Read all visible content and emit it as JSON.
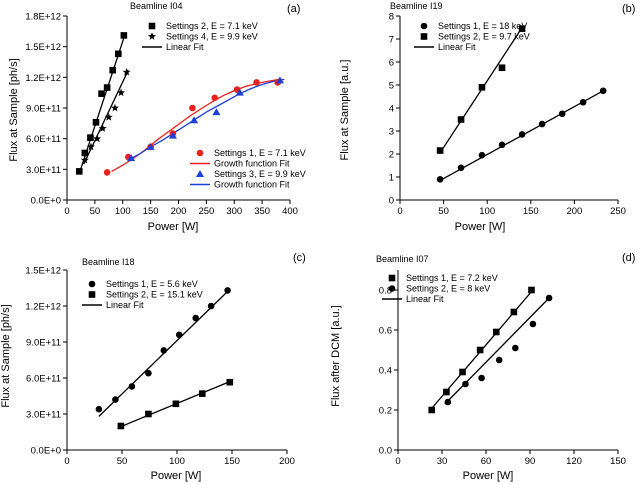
{
  "chart_data": [
    {
      "type": "scatter",
      "panel_label": "(a)",
      "title": "Beamline I04",
      "xlabel": "Power [W]",
      "ylabel": "Flux at Sample [ph/s]",
      "xlim": [
        0,
        400
      ],
      "ylim": [
        0,
        1800000000000.0
      ],
      "xticks": [
        "0",
        "50",
        "100",
        "150",
        "200",
        "250",
        "300",
        "350",
        "400"
      ],
      "yticks": [
        "0.0E+0",
        "3.0E+11",
        "6.0E+11",
        "9.0E+11",
        "1.2E+12",
        "1.5E+12",
        "1.8E+12"
      ],
      "xtick_values": [
        0,
        50,
        100,
        150,
        200,
        250,
        300,
        350,
        400
      ],
      "ytick_values": [
        0,
        300000000000.0,
        600000000000.0,
        900000000000.0,
        1200000000000.0,
        1500000000000.0,
        1800000000000.0
      ],
      "legends": [
        {
          "items": [
            {
              "label": "Settings 2, E = 7.1 keV",
              "marker": "square",
              "color": "#000000"
            },
            {
              "label": "Settings 4, E = 9.9 keV",
              "marker": "star",
              "color": "#000000"
            },
            {
              "label": "Linear Fit",
              "marker": "line",
              "color": "#000000"
            }
          ]
        },
        {
          "items": [
            {
              "label": "Settings 1, E = 7.1 keV",
              "marker": "circle",
              "color": "#e8231f"
            },
            {
              "label": "Growth function Fit",
              "marker": "line",
              "color": "#e8231f"
            },
            {
              "label": "Settings 3, E = 9.9 keV",
              "marker": "triangle",
              "color": "#1e3fd6"
            },
            {
              "label": "Growth function Fit",
              "marker": "line",
              "color": "#1e3fd6"
            }
          ]
        }
      ],
      "series": [
        {
          "name": "Settings 2, E = 7.1 keV",
          "marker": "square",
          "color": "#000000",
          "x": [
            22,
            32,
            42,
            52,
            62,
            72,
            82,
            92,
            102
          ],
          "y": [
            280000000000.0,
            460000000000.0,
            610000000000.0,
            760000000000.0,
            1040000000000.0,
            1100000000000.0,
            1270000000000.0,
            1430000000000.0,
            1610000000000.0
          ]
        },
        {
          "name": "Settings 4, E = 9.9 keV",
          "marker": "star",
          "color": "#000000",
          "x": [
            32,
            43,
            54,
            64,
            75,
            86,
            97,
            107
          ],
          "y": [
            390000000000.0,
            520000000000.0,
            600000000000.0,
            700000000000.0,
            810000000000.0,
            900000000000.0,
            1050000000000.0,
            1250000000000.0
          ]
        },
        {
          "name": "Linear Fit (Settings 2)",
          "type": "line",
          "color": "#000000",
          "x": [
            22,
            104
          ],
          "y": [
            260000000000.0,
            1620000000000.0
          ]
        },
        {
          "name": "Linear Fit (Settings 4)",
          "type": "line",
          "color": "#000000",
          "x": [
            30,
            110
          ],
          "y": [
            350000000000.0,
            1270000000000.0
          ]
        },
        {
          "name": "Settings 1, E = 7.1 keV",
          "marker": "circle",
          "color": "#e8231f",
          "x": [
            72,
            110,
            150,
            190,
            225,
            265,
            305,
            340,
            378
          ],
          "y": [
            270000000000.0,
            420000000000.0,
            520000000000.0,
            650000000000.0,
            900000000000.0,
            1000000000000.0,
            1080000000000.0,
            1150000000000.0,
            1150000000000.0
          ]
        },
        {
          "name": "Settings 3, E = 9.9 keV",
          "marker": "triangle",
          "color": "#1e3fd6",
          "x": [
            115,
            150,
            190,
            228,
            268,
            310,
            382
          ],
          "y": [
            410000000000.0,
            520000000000.0,
            630000000000.0,
            780000000000.0,
            860000000000.0,
            1050000000000.0,
            1170000000000.0
          ]
        },
        {
          "name": "Growth function Fit (red)",
          "type": "line",
          "color": "#e8231f",
          "x": [
            80,
            100,
            120,
            140,
            160,
            180,
            200,
            220,
            240,
            260,
            280,
            300,
            320,
            340,
            360,
            380
          ],
          "y": [
            280000000000.0,
            340000000000.0,
            410000000000.0,
            490000000000.0,
            580000000000.0,
            660000000000.0,
            740000000000.0,
            820000000000.0,
            890000000000.0,
            960000000000.0,
            1020000000000.0,
            1070000000000.0,
            1110000000000.0,
            1140000000000.0,
            1160000000000.0,
            1180000000000.0
          ]
        },
        {
          "name": "Growth function Fit (blue)",
          "type": "line",
          "color": "#1e3fd6",
          "x": [
            110,
            130,
            150,
            170,
            190,
            210,
            230,
            250,
            270,
            290,
            310,
            330,
            350,
            370,
            390
          ],
          "y": [
            390000000000.0,
            450000000000.0,
            520000000000.0,
            580000000000.0,
            650000000000.0,
            720000000000.0,
            790000000000.0,
            860000000000.0,
            920000000000.0,
            980000000000.0,
            1040000000000.0,
            1090000000000.0,
            1130000000000.0,
            1160000000000.0,
            1180000000000.0
          ]
        }
      ]
    },
    {
      "type": "scatter",
      "panel_label": "(b)",
      "title": "Beamline I19",
      "xlabel": "Power [W]",
      "ylabel": "Flux at Sample [a.u.]",
      "xlim": [
        0,
        250
      ],
      "ylim": [
        0,
        8
      ],
      "xticks": [
        "0",
        "50",
        "100",
        "150",
        "200",
        "250"
      ],
      "yticks": [
        "0",
        "1",
        "2",
        "3",
        "4",
        "5",
        "6",
        "7",
        "8"
      ],
      "xtick_values": [
        0,
        50,
        100,
        150,
        200,
        250
      ],
      "ytick_values": [
        0,
        1,
        2,
        3,
        4,
        5,
        6,
        7,
        8
      ],
      "legends": [
        {
          "items": [
            {
              "label": "Settings 1, E = 18 keV",
              "marker": "circle",
              "color": "#000000"
            },
            {
              "label": "Settings 2, E = 9.7 keV",
              "marker": "square",
              "color": "#000000"
            },
            {
              "label": "Linear Fit",
              "marker": "line",
              "color": "#000000"
            }
          ]
        }
      ],
      "series": [
        {
          "name": "Settings 1, E = 18 keV",
          "marker": "circle",
          "color": "#000000",
          "x": [
            46,
            70,
            94,
            117,
            140,
            163,
            186,
            210,
            233
          ],
          "y": [
            0.9,
            1.4,
            1.95,
            2.4,
            2.85,
            3.3,
            3.75,
            4.25,
            4.75
          ]
        },
        {
          "name": "Settings 2, E = 9.7 keV",
          "marker": "square",
          "color": "#000000",
          "x": [
            46,
            70,
            94,
            117,
            140
          ],
          "y": [
            2.15,
            3.5,
            4.9,
            5.75,
            7.45
          ]
        },
        {
          "name": "Linear Fit (Settings 1)",
          "type": "line",
          "color": "#000000",
          "x": [
            46,
            233
          ],
          "y": [
            0.85,
            4.75
          ]
        },
        {
          "name": "Linear Fit (Settings 2)",
          "type": "line",
          "color": "#000000",
          "x": [
            46,
            140
          ],
          "y": [
            2.05,
            7.5
          ]
        }
      ]
    },
    {
      "type": "scatter",
      "panel_label": "(c)",
      "title": "Beamline I18",
      "xlabel": "Power [W]",
      "ylabel": "Flux at Sample [ph/s]",
      "xlim": [
        0,
        200
      ],
      "ylim": [
        0,
        1500000000000.0
      ],
      "xticks": [
        "0",
        "50",
        "100",
        "150",
        "200"
      ],
      "yticks": [
        "0.0E+0",
        "3.0E+11",
        "6.0E+11",
        "9.0E+11",
        "1.2E+12",
        "1.5E+12"
      ],
      "xtick_values": [
        0,
        50,
        100,
        150,
        200
      ],
      "ytick_values": [
        0,
        300000000000.0,
        600000000000.0,
        900000000000.0,
        1200000000000.0,
        1500000000000.0
      ],
      "legends": [
        {
          "items": [
            {
              "label": "Settings 1, E = 5.6 keV",
              "marker": "circle",
              "color": "#000000"
            },
            {
              "label": "Settings 2, E = 15.1 keV",
              "marker": "square",
              "color": "#000000"
            },
            {
              "label": "Linear Fit",
              "marker": "line",
              "color": "#000000"
            }
          ]
        }
      ],
      "series": [
        {
          "name": "Settings 1, E = 5.6 keV",
          "marker": "circle",
          "color": "#000000",
          "x": [
            29,
            44,
            59,
            74,
            88,
            102,
            117,
            131,
            146
          ],
          "y": [
            340000000000.0,
            420000000000.0,
            530000000000.0,
            640000000000.0,
            830000000000.0,
            960000000000.0,
            1100000000000.0,
            1200000000000.0,
            1330000000000.0
          ]
        },
        {
          "name": "Settings 2, E = 15.1 keV",
          "marker": "square",
          "color": "#000000",
          "x": [
            49,
            74,
            99,
            123,
            148
          ],
          "y": [
            200000000000.0,
            300000000000.0,
            385000000000.0,
            470000000000.0,
            565000000000.0
          ]
        },
        {
          "name": "Linear Fit (Settings 1)",
          "type": "line",
          "color": "#000000",
          "x": [
            29,
            147
          ],
          "y": [
            280000000000.0,
            1330000000000.0
          ]
        },
        {
          "name": "Linear Fit (Settings 2)",
          "type": "line",
          "color": "#000000",
          "x": [
            49,
            148
          ],
          "y": [
            195000000000.0,
            570000000000.0
          ]
        }
      ]
    },
    {
      "type": "scatter",
      "panel_label": "(d)",
      "title": "Beamline I07",
      "xlabel": "Power [W]",
      "ylabel": "Flux after DCM [a.u.]",
      "xlim": [
        0,
        150
      ],
      "ylim": [
        0,
        0.9
      ],
      "xticks": [
        "0",
        "30",
        "60",
        "90",
        "120",
        "150"
      ],
      "yticks": [
        "0.0",
        "0.2",
        "0.4",
        "0.6",
        "0.8"
      ],
      "xtick_values": [
        0,
        30,
        60,
        90,
        120,
        150
      ],
      "ytick_values": [
        0,
        0.2,
        0.4,
        0.6,
        0.8
      ],
      "legends": [
        {
          "items": [
            {
              "label": "Settings 1, E = 7.2 keV",
              "marker": "square",
              "color": "#000000"
            },
            {
              "label": "Settings 2, E = 8 keV",
              "marker": "circle",
              "color": "#000000"
            },
            {
              "label": "Linear Fit",
              "marker": "line",
              "color": "#000000"
            }
          ]
        }
      ],
      "series": [
        {
          "name": "Settings 1, E = 7.2 keV",
          "marker": "square",
          "color": "#000000",
          "x": [
            23,
            33,
            44,
            56,
            67,
            79,
            91
          ],
          "y": [
            0.2,
            0.29,
            0.39,
            0.5,
            0.59,
            0.69,
            0.8
          ]
        },
        {
          "name": "Settings 2, E = 8 keV",
          "marker": "circle",
          "color": "#000000",
          "x": [
            34,
            46,
            57,
            69,
            80,
            92,
            103
          ],
          "y": [
            0.24,
            0.33,
            0.36,
            0.45,
            0.51,
            0.63,
            0.76
          ]
        },
        {
          "name": "Linear Fit (Settings 1)",
          "type": "line",
          "color": "#000000",
          "x": [
            22,
            92
          ],
          "y": [
            0.2,
            0.8
          ]
        },
        {
          "name": "Linear Fit (Settings 2)",
          "type": "line",
          "color": "#000000",
          "x": [
            32,
            103
          ],
          "y": [
            0.23,
            0.76
          ]
        }
      ]
    }
  ]
}
